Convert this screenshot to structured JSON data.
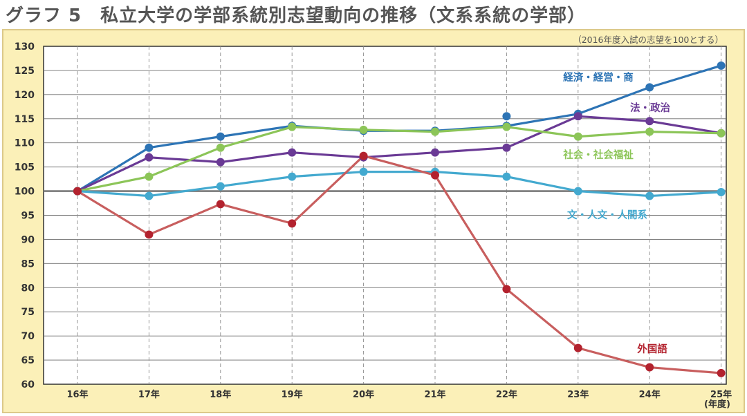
{
  "title": "グラフ 5　私立大学の学部系統別志望動向の推移（文系系統の学部）",
  "note": "（2016年度入試の志望を100とする）",
  "chart_data": {
    "type": "line",
    "title": "グラフ 5　私立大学の学部系統別志望動向の推移（文系系統の学部）",
    "categories": [
      "16年",
      "17年",
      "18年",
      "19年",
      "20年",
      "21年",
      "22年",
      "23年",
      "24年",
      "25年"
    ],
    "x_unit": "(年度)",
    "ylim": [
      60,
      130
    ],
    "yticks": [
      60,
      65,
      70,
      75,
      80,
      85,
      90,
      95,
      100,
      105,
      110,
      115,
      120,
      125,
      130
    ],
    "baseline": 100,
    "grid": "horizontal solid, vertical dashed",
    "series": [
      {
        "name": "経済・経営・商",
        "color": "#2d74b5",
        "values": [
          100,
          109,
          111.3,
          113.5,
          112.5,
          112.5,
          113.5,
          116,
          121.5,
          126
        ],
        "extra_points": [
          {
            "index": 6,
            "value": 115.5
          }
        ]
      },
      {
        "name": "法・政治",
        "color": "#6a3a95",
        "values": [
          100,
          107,
          106,
          108,
          107,
          108,
          109,
          115.5,
          114.5,
          112
        ]
      },
      {
        "name": "社会・社会福祉",
        "color": "#8cc558",
        "values": [
          100,
          103,
          109,
          113.3,
          112.7,
          112.3,
          113.3,
          111.3,
          112.3,
          112
        ]
      },
      {
        "name": "文・人文・人間系",
        "color": "#43a9cf",
        "values": [
          100,
          99,
          101,
          103,
          104,
          104,
          103,
          100,
          99,
          99.8
        ]
      },
      {
        "name": "外国語",
        "color": "#c85e5e",
        "marker_color": "#b3222e",
        "values": [
          100,
          91,
          97.3,
          93.3,
          107.3,
          103.3,
          79.7,
          67.5,
          63.5,
          62.3
        ]
      }
    ]
  }
}
